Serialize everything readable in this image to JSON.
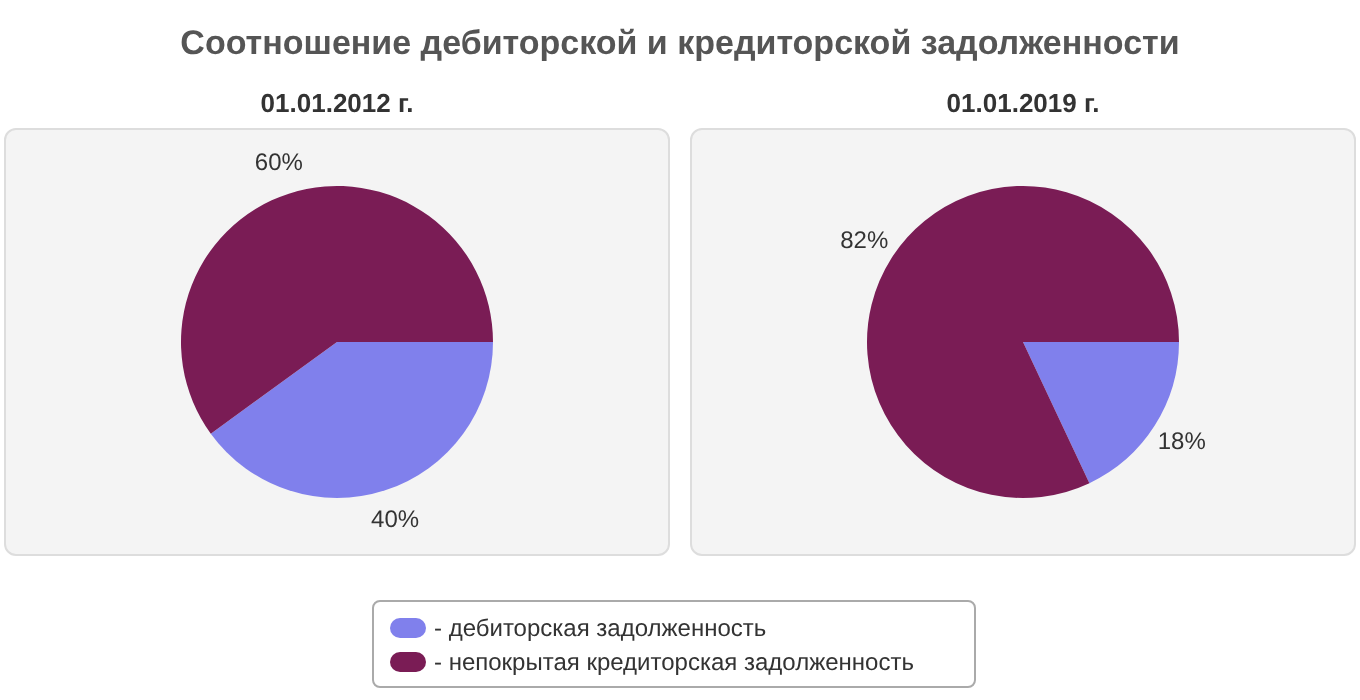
{
  "chart_data": [
    {
      "type": "other",
      "title": "Соотношение дебиторской и кредиторской задолженности"
    },
    {
      "type": "pie",
      "title": "01.01.2012 г.",
      "categories": [
        "- дебиторская задолженность",
        "- непокрытая кредиторская задолженность"
      ],
      "values": [
        40,
        60
      ],
      "value_labels": [
        "40%",
        "60%"
      ],
      "colors": [
        "#8080ec",
        "#7a1c55"
      ],
      "legend": "bottom"
    },
    {
      "type": "pie",
      "title": "01.01.2019 г.",
      "values": [
        18,
        82
      ],
      "value_labels": [
        "18%",
        "82%"
      ],
      "colors": [
        "#8080ec",
        "#7a1c55"
      ]
    }
  ]
}
